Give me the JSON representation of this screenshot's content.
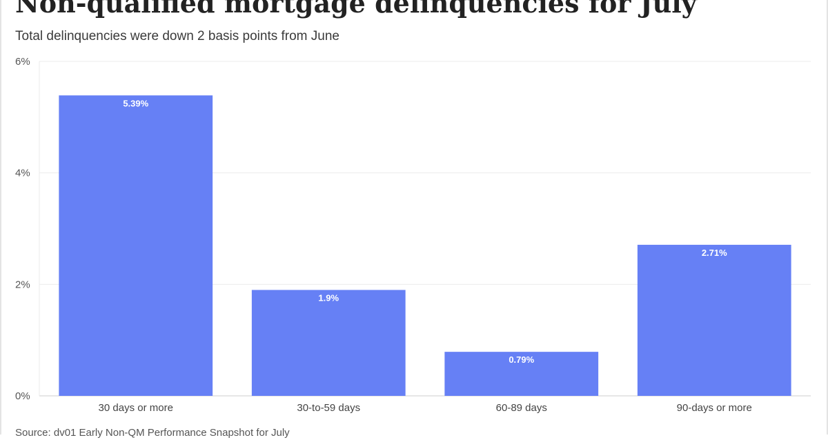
{
  "header": {
    "title": "Non-qualified mortgage delinquencies for July",
    "subtitle": "Total delinquencies were down 2 basis points from June"
  },
  "footer": {
    "source": "Source: dv01 Early Non-QM Performance Snapshot for July"
  },
  "colors": {
    "bar": "#6680f5",
    "grid": "#ebebeb",
    "axis": "#cccccc"
  },
  "chart_data": {
    "type": "bar",
    "categories": [
      "30 days or more",
      "30-to-59 days",
      "60-89 days",
      "90-days or more"
    ],
    "values": [
      5.39,
      1.9,
      0.79,
      2.71
    ],
    "data_labels": [
      "5.39%",
      "1.9%",
      "0.79%",
      "2.71%"
    ],
    "title": "Non-qualified mortgage delinquencies for July",
    "subtitle": "Total delinquencies were down 2 basis points from June",
    "xlabel": "",
    "ylabel": "",
    "ylim": [
      0,
      6
    ],
    "yticks": [
      0,
      2,
      4,
      6
    ],
    "ytick_labels": [
      "0%",
      "2%",
      "4%",
      "6%"
    ],
    "grid": true,
    "legend": "none"
  }
}
